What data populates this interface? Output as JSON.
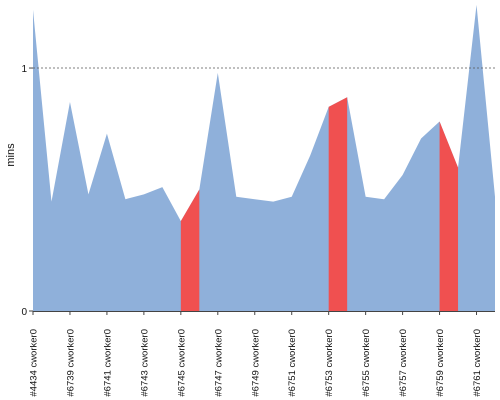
{
  "chart_data": {
    "type": "area",
    "ylabel": "mins",
    "ylim": [
      0,
      1.28
    ],
    "yticks": [
      0,
      1
    ],
    "reference_line": 1,
    "grid": false,
    "legend": "none",
    "categories": [
      "#4434 cworker0",
      "",
      "#6739 cworker0",
      "",
      "#6741 cworker0",
      "",
      "#6743 cworker0",
      "",
      "#6745 cworker0",
      "",
      "#6747 cworker0",
      "",
      "#6749 cworker0",
      "",
      "#6751 cworker0",
      "",
      "#6753 cworker0",
      "",
      "#6755 cworker0",
      "",
      "#6757 cworker0",
      "",
      "#6759 cworker0",
      "",
      "#6761 cworker0",
      ""
    ],
    "values": [
      1.24,
      0.45,
      0.86,
      0.48,
      0.73,
      0.46,
      0.48,
      0.51,
      0.37,
      0.5,
      0.98,
      0.47,
      0.46,
      0.45,
      0.47,
      0.64,
      0.84,
      0.88,
      0.47,
      0.46,
      0.56,
      0.71,
      0.78,
      0.59,
      1.26,
      0.47
    ],
    "highlight_ranges": [
      [
        8,
        9
      ],
      [
        16,
        17
      ],
      [
        22,
        23
      ]
    ],
    "colors": {
      "area": "#8fb0da",
      "highlight": "#f05050",
      "reference_line": "#555555",
      "axis": "#444444"
    }
  }
}
